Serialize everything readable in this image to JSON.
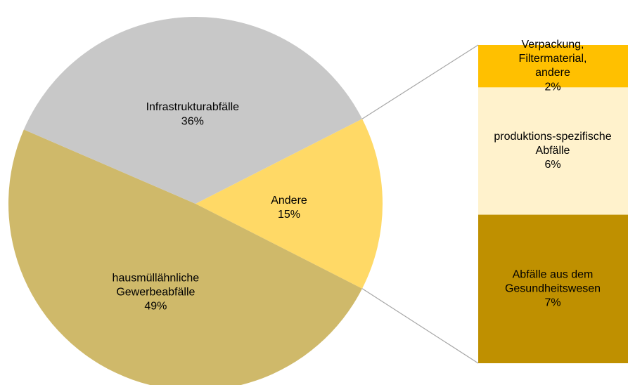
{
  "chart_data": {
    "type": "pie-of-bar",
    "categories": [
      "Andere",
      "hausmüllähnliche\nGewerbeabfälle",
      "Infrastrukturabfälle"
    ],
    "values": [
      15,
      49,
      36
    ],
    "value_labels": [
      "15%",
      "49%",
      "36%"
    ],
    "colors": [
      "#ffd966",
      "#cfb96a",
      "#c8c8c8"
    ],
    "bar": {
      "categories": [
        "Verpackung,\nFiltermaterial,\nandere",
        "produktions-spezifische\nAbfälle",
        "Abfälle aus dem\nGesundheitswesen"
      ],
      "values": [
        2,
        6,
        7
      ],
      "value_labels": [
        "2%",
        "6%",
        "7%"
      ],
      "colors": [
        "#ffc000",
        "#fff2cc",
        "#bf9000"
      ]
    }
  }
}
